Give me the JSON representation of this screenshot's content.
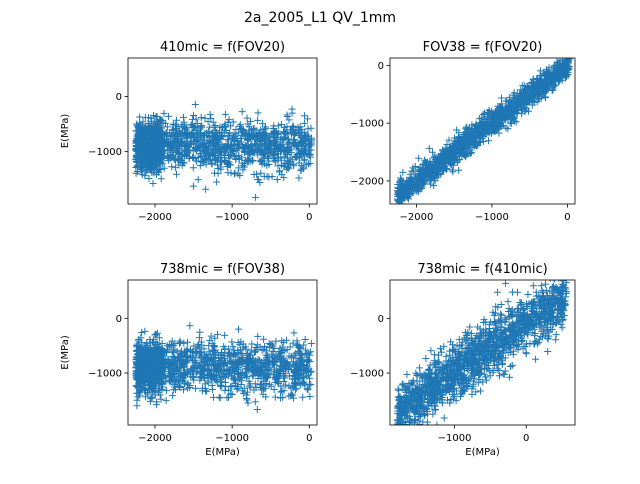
{
  "figure": {
    "suptitle": "2a_2005_L1 QV_1mm",
    "marker_color": "#1f77b4"
  },
  "chart_data": [
    {
      "type": "scatter",
      "title": "410mic = f(FOV20)",
      "xlabel": "",
      "ylabel": "E(MPa)",
      "xlim": [
        -2350,
        100
      ],
      "ylim": [
        -1950,
        700
      ],
      "xticks": [
        -2000,
        -1000,
        0
      ],
      "yticks": [
        -1000,
        0
      ],
      "marker": "+",
      "grid": false,
      "distribution": {
        "kind": "band",
        "x_range": [
          -2250,
          30
        ],
        "y_center": -900,
        "y_spread": 420,
        "y_min": -1850,
        "y_max": 580,
        "dense_x_range": [
          -2250,
          -1900
        ],
        "point_count": 1600
      }
    },
    {
      "type": "scatter",
      "title": "FOV38 = f(FOV20)",
      "xlabel": "",
      "ylabel": "",
      "xlim": [
        -2350,
        100
      ],
      "ylim": [
        -2400,
        130
      ],
      "xticks": [
        -2000,
        -1000,
        0
      ],
      "yticks": [
        -2000,
        -1000,
        0
      ],
      "marker": "+",
      "grid": false,
      "distribution": {
        "kind": "diagonal",
        "x_range": [
          -2250,
          30
        ],
        "slope": 1.0,
        "intercept": 0,
        "y_spread": 110,
        "point_count": 1500
      }
    },
    {
      "type": "scatter",
      "title": "738mic = f(FOV38)",
      "xlabel": "E(MPa)",
      "ylabel": "E(MPa)",
      "xlim": [
        -2350,
        100
      ],
      "ylim": [
        -1950,
        700
      ],
      "xticks": [
        -2000,
        -1000,
        0
      ],
      "yticks": [
        -1000,
        0
      ],
      "marker": "+",
      "grid": false,
      "distribution": {
        "kind": "band",
        "x_range": [
          -2250,
          30
        ],
        "y_center": -900,
        "y_spread": 420,
        "y_min": -1850,
        "y_max": 600,
        "dense_x_range": [
          -2250,
          -1900
        ],
        "point_count": 1600
      }
    },
    {
      "type": "scatter",
      "title": "738mic = f(410mic)",
      "xlabel": "E(MPa)",
      "ylabel": "",
      "xlim": [
        -1900,
        680
      ],
      "ylim": [
        -1950,
        700
      ],
      "xticks": [
        -1000,
        0
      ],
      "yticks": [
        -1000,
        0
      ],
      "marker": "+",
      "grid": false,
      "distribution": {
        "kind": "diagonal",
        "x_range": [
          -1800,
          560
        ],
        "slope": 0.92,
        "intercept": -80,
        "y_spread": 260,
        "point_count": 1500
      }
    }
  ]
}
